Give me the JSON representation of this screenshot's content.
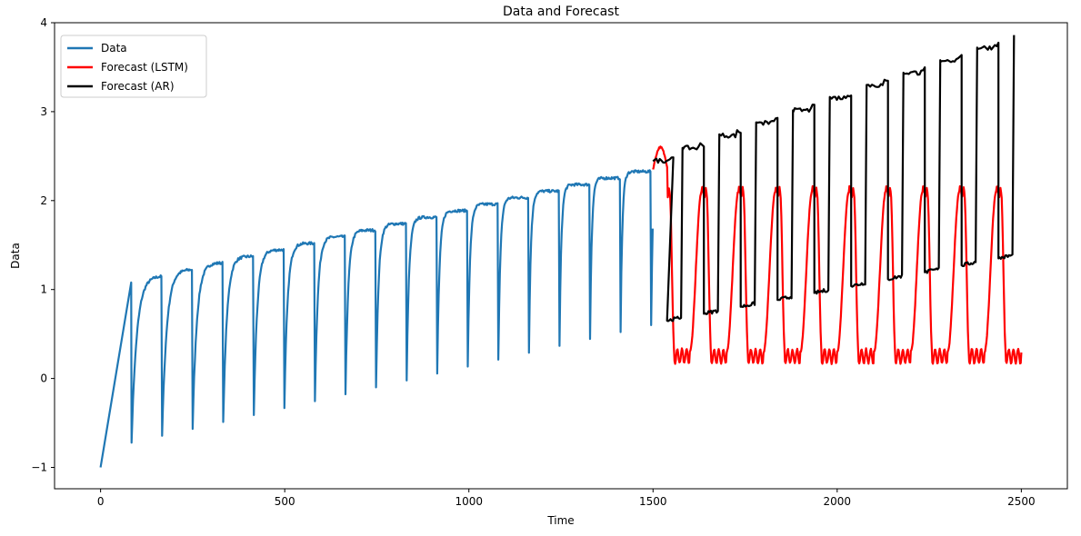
{
  "chart_data": {
    "type": "line",
    "title": "Data and Forecast",
    "xlabel": "Time",
    "ylabel": "Data",
    "xlim": [
      -125,
      2625
    ],
    "ylim": [
      -1.24,
      4.0
    ],
    "xticks": [
      0,
      500,
      1000,
      1500,
      2000,
      2500
    ],
    "yticks": [
      -1,
      0,
      1,
      2,
      3,
      4
    ],
    "xtick_labels": [
      "0",
      "500",
      "1000",
      "1500",
      "2000",
      "2500"
    ],
    "ytick_labels": [
      "−1",
      "0",
      "1",
      "2",
      "3",
      "4"
    ],
    "grid": false,
    "legend_position": "top-left",
    "series": [
      {
        "name": "Data",
        "color": "#1f77b4",
        "kind": "sawtooth",
        "x_start": 0,
        "x_end": 1500,
        "period": 83,
        "low_start": -0.8,
        "low_end": 0.6,
        "high_start": 1.08,
        "high_end": 2.4,
        "initial_point": [
          0,
          -1.0
        ]
      },
      {
        "name": "Forecast (LSTM)",
        "color": "#ff0000",
        "kind": "oscillation",
        "x_start": 1500,
        "x_end": 2500,
        "period": 100,
        "high": 2.1,
        "low": 0.3,
        "first_peak": 2.6
      },
      {
        "name": "Forecast (AR)",
        "color": "#000000",
        "kind": "square",
        "x_start": 1500,
        "x_end": 2500,
        "period": 100,
        "high_start": 2.45,
        "high_end": 3.72,
        "low_start": 0.65,
        "low_end": 1.35
      }
    ]
  }
}
